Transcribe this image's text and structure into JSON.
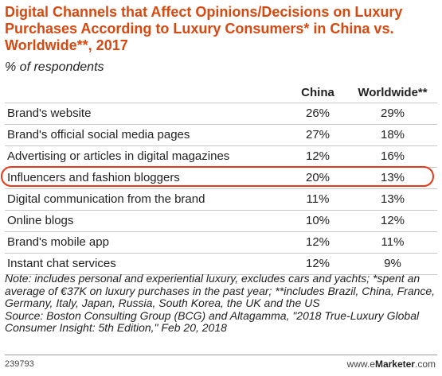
{
  "title": "Digital Channels that Affect Opinions/Decisions on Luxury Purchases According to Luxury Consumers* in China vs. Worldwide**, 2017",
  "subtitle": "% of respondents",
  "colors": {
    "title": "#d9480f",
    "highlight": "#e53917",
    "rule": "#c8c8c8"
  },
  "chart_data": {
    "type": "table",
    "title": "Digital Channels that Affect Opinions/Decisions on Luxury Purchases According to Luxury Consumers* in China vs. Worldwide**, 2017",
    "unit": "% of respondents",
    "columns": [
      "",
      "China",
      "Worldwide**"
    ],
    "categories": [
      "Brand's website",
      "Brand's official social media pages",
      "Advertising or articles in digital magazines",
      "Influencers and fashion bloggers",
      "Digital communication from the brand",
      "Online blogs",
      "Brand's mobile app",
      "Instant chat services"
    ],
    "series": [
      {
        "name": "China",
        "values": [
          26,
          27,
          12,
          20,
          11,
          10,
          12,
          12
        ]
      },
      {
        "name": "Worldwide**",
        "values": [
          29,
          18,
          16,
          13,
          13,
          12,
          11,
          9
        ]
      }
    ],
    "highlighted_row": "Influencers and fashion bloggers"
  },
  "table": {
    "headers": {
      "china": "China",
      "worldwide": "Worldwide**"
    },
    "rows": [
      {
        "label": "Brand's website",
        "china": "26%",
        "worldwide": "29%"
      },
      {
        "label": "Brand's official social media pages",
        "china": "27%",
        "worldwide": "18%"
      },
      {
        "label": "Advertising or articles in digital magazines",
        "china": "12%",
        "worldwide": "16%"
      },
      {
        "label": "Influencers and fashion bloggers",
        "china": "20%",
        "worldwide": "13%"
      },
      {
        "label": "Digital communication from the brand",
        "china": "11%",
        "worldwide": "13%"
      },
      {
        "label": "Online blogs",
        "china": "10%",
        "worldwide": "12%"
      },
      {
        "label": "Brand's mobile app",
        "china": "12%",
        "worldwide": "11%"
      },
      {
        "label": "Instant chat services",
        "china": "12%",
        "worldwide": "9%"
      }
    ]
  },
  "notes": {
    "note": "Note: includes personal and experiential luxury, excludes cars and yachts; *spent an average of €37K on luxury purchases in the past year; **includes Brazil, China, France, Germany, Italy, Japan, Russia, South Korea, the UK and the US",
    "source": "Source: Boston Consulting Group (BCG) and Altagamma, \"2018 True-Luxury Global Consumer Insight: 5th Edition,\" Feb 20, 2018"
  },
  "footer": {
    "chart_id": "239793",
    "brand_prefix": "www.",
    "brand_e": "e",
    "brand_name": "Marketer",
    "brand_suffix": ".com"
  }
}
